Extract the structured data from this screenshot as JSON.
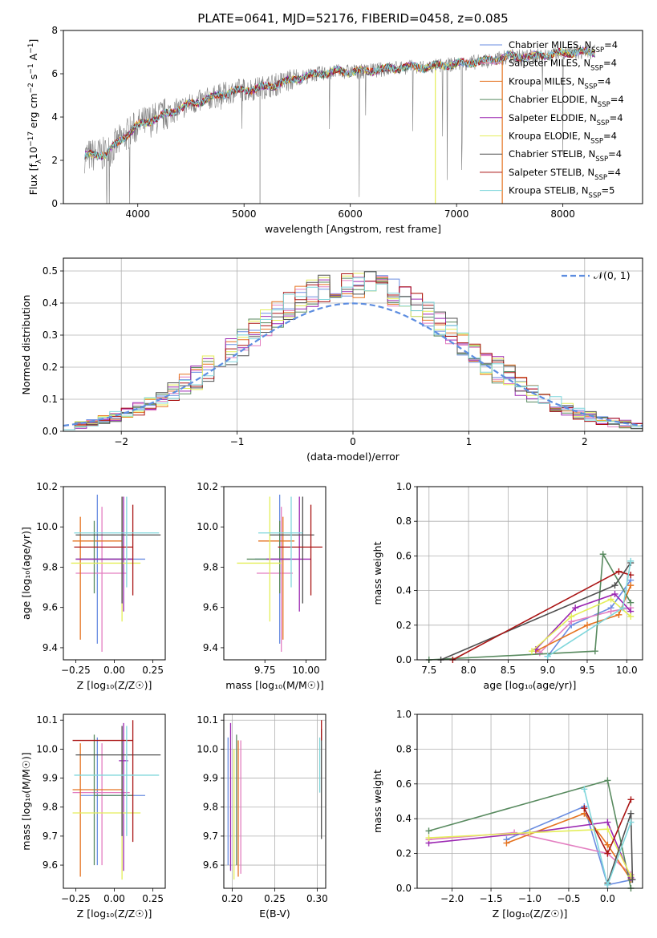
{
  "figure_title": "PLATE=0641, MJD=52176, FIBERID=0458, z=0.085",
  "colors": {
    "chab_miles": "#6a8de1",
    "salp_miles": "#e37fc1",
    "krou_miles": "#e57320",
    "chab_elodie": "#588a5f",
    "salp_elodie": "#9b27b2",
    "krou_elodie": "#e4ee59",
    "chab_stelib": "#505050",
    "salp_stelib": "#aa1515",
    "krou_stelib": "#7fd6db",
    "data": "#808080",
    "normal": "#5d8de0",
    "grid": "#b0b0b0"
  },
  "chart_data": [
    {
      "id": "spectrum",
      "type": "line",
      "xlabel": "wavelength [Angstrom, rest frame]",
      "ylabel": "Flux [f_λ10^-17 erg cm^-2 s^-1 A^-1]",
      "xlim": [
        3300,
        8750
      ],
      "ylim": [
        0,
        8
      ],
      "xticks": [
        "4000",
        "5000",
        "6000",
        "7000",
        "8000"
      ],
      "yticks": [
        "0",
        "2",
        "4",
        "6",
        "8"
      ],
      "grid": false,
      "legend": "top-right",
      "legend_entries": [
        {
          "key": "chab_miles",
          "label": "Chabrier MILES, N",
          "sub": "SSP",
          "suffix": "=4"
        },
        {
          "key": "salp_miles",
          "label": "Salpeter MILES, N",
          "sub": "SSP",
          "suffix": "=4"
        },
        {
          "key": "krou_miles",
          "label": "Kroupa MILES, N",
          "sub": "SSP",
          "suffix": "=4"
        },
        {
          "key": "chab_elodie",
          "label": "Chabrier ELODIE, N",
          "sub": "SSP",
          "suffix": "=4"
        },
        {
          "key": "salp_elodie",
          "label": "Salpeter ELODIE, N",
          "sub": "SSP",
          "suffix": "=4"
        },
        {
          "key": "krou_elodie",
          "label": "Kroupa ELODIE, N",
          "sub": "SSP",
          "suffix": "=4"
        },
        {
          "key": "chab_stelib",
          "label": "Chabrier STELIB, N",
          "sub": "SSP",
          "suffix": "=4"
        },
        {
          "key": "salp_stelib",
          "label": "Salpeter STELIB, N",
          "sub": "SSP",
          "suffix": "=4"
        },
        {
          "key": "krou_stelib",
          "label": "Kroupa STELIB, N",
          "sub": "SSP",
          "suffix": "=5"
        }
      ],
      "continuum": {
        "x": [
          3500,
          3700,
          3900,
          4000,
          4100,
          4300,
          4500,
          4700,
          4900,
          5100,
          5300,
          5500,
          5700,
          5900,
          6100,
          6300,
          6500,
          6700,
          6900,
          7100,
          7300,
          7500,
          7700,
          7900,
          8100,
          8300
        ],
        "y": [
          2.2,
          2.3,
          3.2,
          3.6,
          3.8,
          4.2,
          4.6,
          4.9,
          5.2,
          5.3,
          5.5,
          5.8,
          6.0,
          6.1,
          6.1,
          6.2,
          6.3,
          6.3,
          6.4,
          6.5,
          6.6,
          6.8,
          6.8,
          6.9,
          7.0,
          7.0
        ]
      }
    },
    {
      "id": "residuals",
      "type": "bar",
      "xlabel": "(data-model)/error",
      "ylabel": "Normed distribution",
      "xlim": [
        -2.5,
        2.5
      ],
      "ylim": [
        0,
        0.54
      ],
      "xticks": [
        "−2",
        "−1",
        "0",
        "1",
        "2"
      ],
      "yticks": [
        "0.0",
        "0.1",
        "0.2",
        "0.3",
        "0.4",
        "0.5"
      ],
      "grid": true,
      "legend": "top-right",
      "legend_label": "𝒩(0, 1)",
      "bin_width": 0.1,
      "bin_start": -2.5
    },
    {
      "id": "z_age",
      "type": "scatter",
      "xlabel": "Z [log₁₀(Z/Z☉)]",
      "ylabel": "age  [log₁₀(age/yr)]",
      "xlim": [
        -0.33,
        0.33
      ],
      "ylim": [
        9.34,
        10.2
      ],
      "xticks": [
        "−0.25",
        "0.00",
        "0.25"
      ],
      "yticks": [
        "9.4",
        "9.6",
        "9.8",
        "10.0",
        "10.2"
      ],
      "grid": false
    },
    {
      "id": "mass_age",
      "type": "scatter",
      "xlabel": "mass [log₁₀(M/M☉)]",
      "ylabel": "",
      "xlim": [
        9.5,
        10.12
      ],
      "ylim": [
        9.34,
        10.2
      ],
      "xticks": [
        "9.75",
        "10.00"
      ],
      "yticks": [
        "9.4",
        "9.6",
        "9.8",
        "10.0",
        "10.2"
      ],
      "grid": false
    },
    {
      "id": "age_weight",
      "type": "line",
      "xlabel": "age  [log₁₀(age/yr)]",
      "ylabel": "mass weight",
      "xlim": [
        7.35,
        10.2
      ],
      "ylim": [
        0,
        1.0
      ],
      "xticks": [
        "7.5",
        "8.0",
        "8.5",
        "9.0",
        "9.5",
        "10.0"
      ],
      "yticks": [
        "0.0",
        "0.2",
        "0.4",
        "0.6",
        "0.8",
        "1.0"
      ],
      "grid": true
    },
    {
      "id": "z_mass",
      "type": "scatter",
      "xlabel": "Z [log₁₀(Z/Z☉)]",
      "ylabel": "mass [log₁₀(M/M☉)]",
      "xlim": [
        -0.33,
        0.33
      ],
      "ylim": [
        9.52,
        10.12
      ],
      "xticks": [
        "−0.25",
        "0.00",
        "0.25"
      ],
      "yticks": [
        "9.6",
        "9.7",
        "9.8",
        "9.9",
        "10.0",
        "10.1"
      ],
      "grid": false
    },
    {
      "id": "ebv_mass",
      "type": "scatter",
      "xlabel": "E(B-V)",
      "ylabel": "",
      "xlim": [
        0.19,
        0.31
      ],
      "ylim": [
        9.52,
        10.12
      ],
      "xticks": [
        "0.20",
        "0.25",
        "0.30"
      ],
      "yticks": [
        "9.6",
        "9.7",
        "9.8",
        "9.9",
        "10.0",
        "10.1"
      ],
      "grid": true
    },
    {
      "id": "z_weight",
      "type": "line",
      "xlabel": "Z [log₁₀(Z/Z☉)]",
      "ylabel": "mass weight",
      "xlim": [
        -2.45,
        0.45
      ],
      "ylim": [
        0,
        1.0
      ],
      "xticks": [
        "−2.0",
        "−1.5",
        "−1.0",
        "−0.5",
        "0.0"
      ],
      "yticks": [
        "0.0",
        "0.2",
        "0.4",
        "0.6",
        "0.8",
        "1.0"
      ],
      "grid": true
    }
  ],
  "models": [
    {
      "key": "chab_miles",
      "Z": -0.11,
      "age": 9.84,
      "mass": 9.84,
      "ebv": 0.195,
      "err": {
        "z": [
          -0.22,
          0.2
        ],
        "age": [
          9.42,
          10.16
        ],
        "m": [
          9.6,
          10.04
        ],
        "zm": [
          -0.22,
          0.2
        ],
        "e": [
          9.6,
          10.04
        ]
      },
      "agew": [
        [
          9.0,
          0.02
        ],
        [
          9.3,
          0.2
        ],
        [
          9.8,
          0.3
        ],
        [
          10.05,
          0.46
        ]
      ],
      "zw": [
        [
          -1.3,
          0.28
        ],
        [
          -0.3,
          0.47
        ],
        [
          0.0,
          0.02
        ],
        [
          0.32,
          0.05
        ]
      ]
    },
    {
      "key": "salp_miles",
      "Z": -0.08,
      "age": 9.77,
      "mass": 9.85,
      "ebv": 0.21,
      "err": {
        "z": [
          -0.25,
          0.08
        ],
        "age": [
          9.38,
          10.1
        ],
        "m": [
          9.6,
          10.02
        ],
        "zm": [
          -0.27,
          0.1
        ],
        "e": [
          9.57,
          10.03
        ]
      },
      "agew": [
        [
          8.9,
          0.04
        ],
        [
          9.3,
          0.22
        ],
        [
          9.8,
          0.28
        ],
        [
          10.05,
          0.3
        ]
      ],
      "zw": [
        [
          -2.3,
          0.28
        ],
        [
          -1.2,
          0.32
        ],
        [
          0.0,
          0.2
        ],
        [
          0.3,
          0.08
        ]
      ]
    },
    {
      "key": "krou_miles",
      "Z": -0.22,
      "age": 9.93,
      "mass": 9.86,
      "ebv": 0.207,
      "err": {
        "z": [
          -0.27,
          0.05
        ],
        "age": [
          9.44,
          10.05
        ],
        "m": [
          9.56,
          10.02
        ],
        "zm": [
          -0.27,
          0.05
        ],
        "e": [
          9.56,
          10.03
        ]
      },
      "agew": [
        [
          8.85,
          0.05
        ],
        [
          9.5,
          0.2
        ],
        [
          9.9,
          0.26
        ],
        [
          10.05,
          0.43
        ]
      ],
      "zw": [
        [
          -1.3,
          0.26
        ],
        [
          -0.3,
          0.43
        ],
        [
          0.0,
          0.25
        ],
        [
          0.3,
          0.05
        ]
      ]
    },
    {
      "key": "chab_elodie",
      "Z": -0.13,
      "age": 9.84,
      "mass": 9.84,
      "ebv": 0.205,
      "err": {
        "z": [
          -0.25,
          0.11
        ],
        "age": [
          9.67,
          10.03
        ],
        "m": [
          9.6,
          10.05
        ],
        "zm": [
          -0.13,
          0.12
        ],
        "e": [
          9.6,
          10.05
        ]
      },
      "agew": [
        [
          7.5,
          0.0
        ],
        [
          9.6,
          0.05
        ],
        [
          9.7,
          0.61
        ],
        [
          10.05,
          0.33
        ]
      ],
      "zw": [
        [
          -2.3,
          0.33
        ],
        [
          0.0,
          0.62
        ],
        [
          0.3,
          0.0
        ]
      ]
    },
    {
      "key": "salp_elodie",
      "Z": 0.06,
      "age": 9.84,
      "mass": 9.96,
      "ebv": 0.198,
      "err": {
        "z": [
          -0.25,
          0.12
        ],
        "age": [
          9.58,
          10.15
        ],
        "m": [
          9.58,
          10.09
        ],
        "zm": [
          0.03,
          0.09
        ],
        "e": [
          9.58,
          10.09
        ]
      },
      "agew": [
        [
          8.85,
          0.06
        ],
        [
          9.35,
          0.3
        ],
        [
          9.85,
          0.38
        ],
        [
          10.05,
          0.28
        ]
      ],
      "zw": [
        [
          -2.3,
          0.26
        ],
        [
          -1.0,
          0.32
        ],
        [
          0.0,
          0.38
        ],
        [
          0.3,
          0.06
        ]
      ]
    },
    {
      "key": "krou_elodie",
      "Z": 0.05,
      "age": 9.82,
      "mass": 9.78,
      "ebv": 0.202,
      "err": {
        "z": [
          -0.28,
          0.17
        ],
        "age": [
          9.53,
          10.15
        ],
        "m": [
          9.55,
          10.0
        ],
        "zm": [
          -0.27,
          0.17
        ],
        "e": [
          9.55,
          10.0
        ]
      },
      "agew": [
        [
          8.8,
          0.05
        ],
        [
          9.3,
          0.25
        ],
        [
          9.8,
          0.35
        ],
        [
          10.05,
          0.25
        ]
      ],
      "zw": [
        [
          -2.3,
          0.29
        ],
        [
          -1.0,
          0.32
        ],
        [
          0.0,
          0.34
        ],
        [
          0.3,
          0.07
        ]
      ]
    },
    {
      "key": "chab_stelib",
      "Z": 0.05,
      "age": 9.96,
      "mass": 9.98,
      "ebv": 0.305,
      "err": {
        "z": [
          -0.25,
          0.3
        ],
        "age": [
          9.62,
          10.15
        ],
        "m": [
          9.7,
          10.08
        ],
        "zm": [
          -0.25,
          0.3
        ],
        "e": [
          9.69,
          10.07
        ]
      },
      "agew": [
        [
          7.65,
          0.0
        ],
        [
          9.85,
          0.43
        ],
        [
          10.05,
          0.56
        ]
      ],
      "zw": [
        [
          0.0,
          0.03
        ],
        [
          0.3,
          0.43
        ],
        [
          0.32,
          0.05
        ]
      ]
    },
    {
      "key": "salp_stelib",
      "Z": 0.12,
      "age": 9.9,
      "mass": 10.03,
      "ebv": 0.305,
      "err": {
        "z": [
          -0.26,
          0.12
        ],
        "age": [
          9.66,
          10.11
        ],
        "m": [
          9.68,
          10.1
        ],
        "zm": [
          -0.27,
          0.12
        ],
        "e": [
          10.03,
          10.1
        ]
      },
      "agew": [
        [
          7.8,
          0.0
        ],
        [
          9.9,
          0.51
        ],
        [
          10.05,
          0.49
        ]
      ],
      "zw": [
        [
          -0.3,
          0.46
        ],
        [
          0.0,
          0.2
        ],
        [
          0.3,
          0.51
        ]
      ]
    },
    {
      "key": "krou_stelib",
      "Z": 0.08,
      "age": 9.97,
      "mass": 9.91,
      "ebv": 0.303,
      "err": {
        "z": [
          -0.26,
          0.29
        ],
        "age": [
          9.7,
          10.15
        ],
        "m": [
          9.7,
          10.08
        ],
        "zm": [
          -0.26,
          0.29
        ],
        "e": [
          9.85,
          10.04
        ]
      },
      "agew": [
        [
          9.0,
          0.02
        ],
        [
          9.95,
          0.3
        ],
        [
          10.05,
          0.57
        ]
      ],
      "zw": [
        [
          -0.3,
          0.57
        ],
        [
          0.0,
          0.02
        ],
        [
          0.3,
          0.38
        ]
      ]
    }
  ]
}
